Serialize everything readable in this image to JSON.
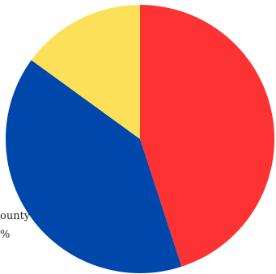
{
  "chart_data": {
    "type": "pie",
    "slices": [
      {
        "value": 45,
        "color": "#fd3333"
      },
      {
        "value": 40,
        "color": "#0047ab"
      },
      {
        "value": 15,
        "color": "#fde05a"
      }
    ],
    "start_angle_deg": 0,
    "direction": "clockwise",
    "labels": [
      {
        "lines": [
          "ounty",
          "%"
        ]
      }
    ]
  }
}
